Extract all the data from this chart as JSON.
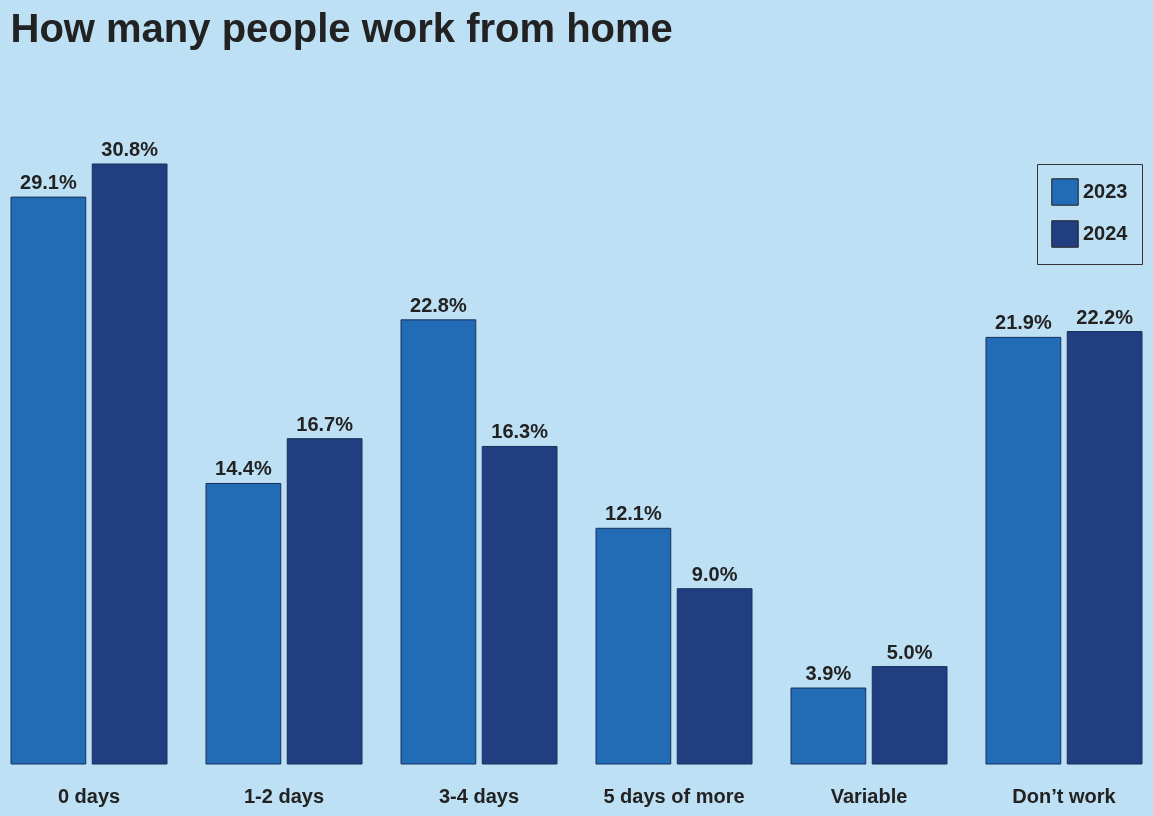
{
  "chart_data": {
    "type": "bar",
    "title": "How many people work from home",
    "categories": [
      "0 days",
      "1-2 days",
      "3-4 days",
      "5 days of more",
      "Variable",
      "Don’t work"
    ],
    "series": [
      {
        "name": "2023",
        "color": "#226bb5",
        "values": [
          29.1,
          14.4,
          22.8,
          12.1,
          3.9,
          21.9
        ],
        "value_labels": [
          "29.1%",
          "14.4%",
          "22.8%",
          "12.1%",
          "3.9%",
          "21.9%"
        ]
      },
      {
        "name": "2024",
        "color": "#213f80",
        "values": [
          30.8,
          16.7,
          16.3,
          9.0,
          5.0,
          22.2
        ],
        "value_labels": [
          "30.8%",
          "16.7%",
          "16.3%",
          "9.0%",
          "5.0%",
          "22.2%"
        ]
      }
    ],
    "relative": false,
    "legend": "top right",
    "grid": false
  }
}
